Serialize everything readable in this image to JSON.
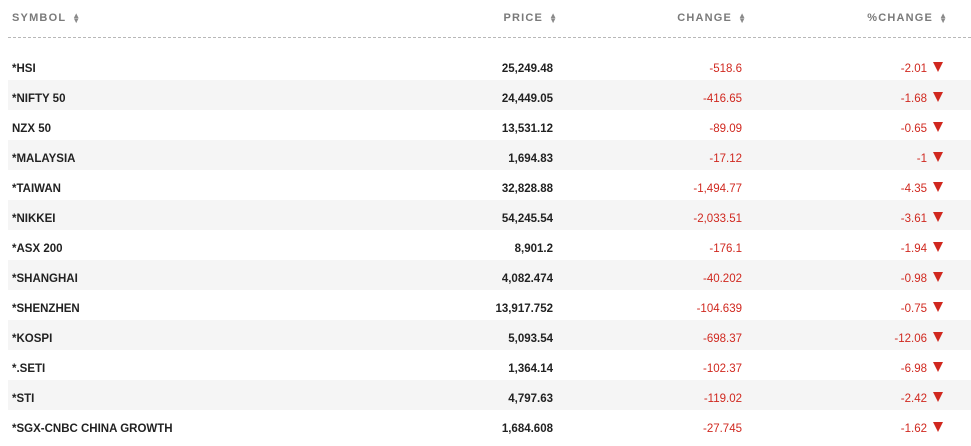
{
  "header": {
    "symbol_label": "SYMBOL",
    "price_label": "PRICE",
    "change_label": "CHANGE",
    "pct_change_label": "%CHANGE",
    "sort_icon": "sort-updown-icon"
  },
  "colors": {
    "negative": "#d0281f",
    "stripe": "#f5f5f5"
  },
  "rows": [
    {
      "symbol": "*HSI",
      "price": "25,249.48",
      "change": "-518.6",
      "pct_change": "-2.01",
      "direction": "down"
    },
    {
      "symbol": "*NIFTY 50",
      "price": "24,449.05",
      "change": "-416.65",
      "pct_change": "-1.68",
      "direction": "down"
    },
    {
      "symbol": "NZX 50",
      "price": "13,531.12",
      "change": "-89.09",
      "pct_change": "-0.65",
      "direction": "down"
    },
    {
      "symbol": "*MALAYSIA",
      "price": "1,694.83",
      "change": "-17.12",
      "pct_change": "-1",
      "direction": "down"
    },
    {
      "symbol": "*TAIWAN",
      "price": "32,828.88",
      "change": "-1,494.77",
      "pct_change": "-4.35",
      "direction": "down"
    },
    {
      "symbol": "*NIKKEI",
      "price": "54,245.54",
      "change": "-2,033.51",
      "pct_change": "-3.61",
      "direction": "down"
    },
    {
      "symbol": "*ASX 200",
      "price": "8,901.2",
      "change": "-176.1",
      "pct_change": "-1.94",
      "direction": "down"
    },
    {
      "symbol": "*SHANGHAI",
      "price": "4,082.474",
      "change": "-40.202",
      "pct_change": "-0.98",
      "direction": "down"
    },
    {
      "symbol": "*SHENZHEN",
      "price": "13,917.752",
      "change": "-104.639",
      "pct_change": "-0.75",
      "direction": "down"
    },
    {
      "symbol": "*KOSPI",
      "price": "5,093.54",
      "change": "-698.37",
      "pct_change": "-12.06",
      "direction": "down"
    },
    {
      "symbol": "*.SETI",
      "price": "1,364.14",
      "change": "-102.37",
      "pct_change": "-6.98",
      "direction": "down"
    },
    {
      "symbol": "*STI",
      "price": "4,797.63",
      "change": "-119.02",
      "pct_change": "-2.42",
      "direction": "down"
    },
    {
      "symbol": "*SGX-CNBC CHINA GROWTH",
      "price": "1,684.608",
      "change": "-27.745",
      "pct_change": "-1.62",
      "direction": "down"
    }
  ]
}
